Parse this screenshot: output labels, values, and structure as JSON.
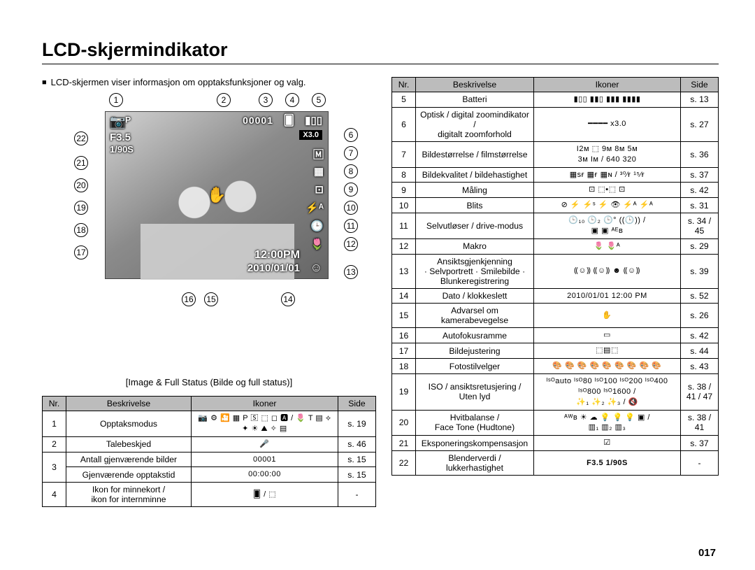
{
  "title": "LCD-skjermindikator",
  "intro": "LCD-skjermen viser informasjon om opptaksfunksjoner og valg.",
  "caption": "[Image & Full Status (Bilde og full status)]",
  "pageNumber": "017",
  "lcd": {
    "camera_icon": "📷ᴾ",
    "aperture": "F3.5",
    "shutter": "1/90S",
    "counter": "00001",
    "card_icon": "🂠",
    "battery_icon": "▮▯▯",
    "zoom": "X3.0",
    "time": "12:00PM",
    "date": "2010/01/01",
    "face_icon": "☺",
    "palm_icon": "✋",
    "right_icons": [
      "🄼",
      "▦",
      "⊡",
      "⚡ᴬ",
      "🕒",
      "🌷"
    ]
  },
  "callouts_top": [
    "1",
    "2",
    "3",
    "4",
    "5"
  ],
  "callouts_right": [
    "6",
    "7",
    "8",
    "9",
    "10",
    "11",
    "12",
    "13"
  ],
  "callouts_left": [
    "22",
    "21",
    "20",
    "19",
    "18",
    "17"
  ],
  "callouts_bottom": [
    "16",
    "15",
    "14"
  ],
  "headers": {
    "nr": "Nr.",
    "desc": "Beskrivelse",
    "icons": "Ikoner",
    "side": "Side"
  },
  "tableLeft": [
    {
      "nr": "1",
      "desc": "Opptaksmodus",
      "icons": "📷 ⚙ 🎦 ▦ P 🅂 ⬚ ◻ 🅰 / 🌷 T ▤ ⟡ ✦ ☀ ⛰ ✧ ▤",
      "side": "s. 19"
    },
    {
      "nr": "2",
      "desc": "Talebeskjed",
      "icons": "🎤",
      "side": "s. 46"
    },
    {
      "nr": "3a",
      "desc": "Antall gjenværende bilder",
      "icons": "00001",
      "side": "s. 15"
    },
    {
      "nr": "3b",
      "desc": "Gjenværende opptakstid",
      "icons": "00:00:00",
      "side": "s. 15"
    },
    {
      "nr": "4",
      "desc": "Ikon for minnekort /\nikon for internminne",
      "icons": "🂠 / ⬚",
      "side": "-"
    }
  ],
  "tableRight": [
    {
      "nr": "5",
      "desc": "Batteri",
      "icons": "▮▯▯  ▮▮▯  ▮▮▮  ▮▮▮▮",
      "side": "s. 13"
    },
    {
      "nr": "6",
      "desc": "Optisk / digital zoomindikator /\ndigitalt zoomforhold",
      "icons": "━━━━  x3.0",
      "side": "s. 27"
    },
    {
      "nr": "7",
      "desc": "Bildestørrelse / filmstørrelse",
      "icons": "I2ᴍ ⬚ 9ᴍ 8ᴍ 5ᴍ\n3ᴍ Iᴍ / 640 320",
      "side": "s. 36"
    },
    {
      "nr": "8",
      "desc": "Bildekvalitet / bildehastighet",
      "icons": "▦sғ ▦ғ ▦ɴ / ³⁰⁄ғ ¹⁵⁄ғ",
      "side": "s. 37"
    },
    {
      "nr": "9",
      "desc": "Måling",
      "icons": "⊡  ⬚▪⬚  ⊡",
      "side": "s. 42"
    },
    {
      "nr": "10",
      "desc": "Blits",
      "icons": "⊘ ⚡ ⚡ˢ ⚡ 👁 ⚡ᴬ ⚡ᴬ",
      "side": "s. 31"
    },
    {
      "nr": "11",
      "desc": "Selvutløser / drive-modus",
      "icons": "🕒₁₀ 🕒₂ 🕒° ((🕒)) /\n▣ ▣ ᴬᴱʙ",
      "side": "s. 34 /\n45"
    },
    {
      "nr": "12",
      "desc": "Makro",
      "icons": "🌷  🌷ᴬ",
      "side": "s. 29"
    },
    {
      "nr": "13",
      "desc": "Ansiktsgjenkjenning\n· Selvportrett · Smilebilde ·\nBlunkeregistrering",
      "icons": "⸨☺⸩ ⸨☺⸩ ☻ ⸨☺⸩",
      "side": "s. 39"
    },
    {
      "nr": "14",
      "desc": "Dato / klokkeslett",
      "icons": "2010/01/01 12:00 PM",
      "side": "s. 52"
    },
    {
      "nr": "15",
      "desc": "Advarsel om\nkamerabevegelse",
      "icons": "✋",
      "side": "s. 26"
    },
    {
      "nr": "16",
      "desc": "Autofokusramme",
      "icons": "▭",
      "side": "s. 42"
    },
    {
      "nr": "17",
      "desc": "Bildejustering",
      "icons": "⬚▤⬚",
      "side": "s. 44"
    },
    {
      "nr": "18",
      "desc": "Fotostilvelger",
      "icons": "🎨 🎨 🎨 🎨 🎨 🎨 🎨 🎨 🎨",
      "side": "s. 43"
    },
    {
      "nr": "19",
      "desc": "ISO / ansiktsretusjering /\nUten lyd",
      "icons": "ᴵˢᴼauto ᴵˢᴼ80 ᴵˢᴼ100 ᴵˢᴼ200 ᴵˢᴼ400 ᴵˢᴼ800 ᴵˢᴼ1600 /\n✨₁ ✨₂ ✨₃ / 🔇",
      "side": "s. 38 /\n41 / 47"
    },
    {
      "nr": "20",
      "desc": "Hvitbalanse /\nFace Tone (Hudtone)",
      "icons": "ᴬᵂʙ ☀ ☁ 💡 💡 💡 ▣ /\n▥₁ ▥₂ ▥₃",
      "side": "s. 38 /\n41"
    },
    {
      "nr": "21",
      "desc": "Eksponeringskompensasjon",
      "icons": "☑",
      "side": "s. 37"
    },
    {
      "nr": "22",
      "desc": "Blenderverdi /\nlukkerhastighet",
      "icons": "F3.5  1/90S",
      "side": "-",
      "bold": true
    }
  ]
}
